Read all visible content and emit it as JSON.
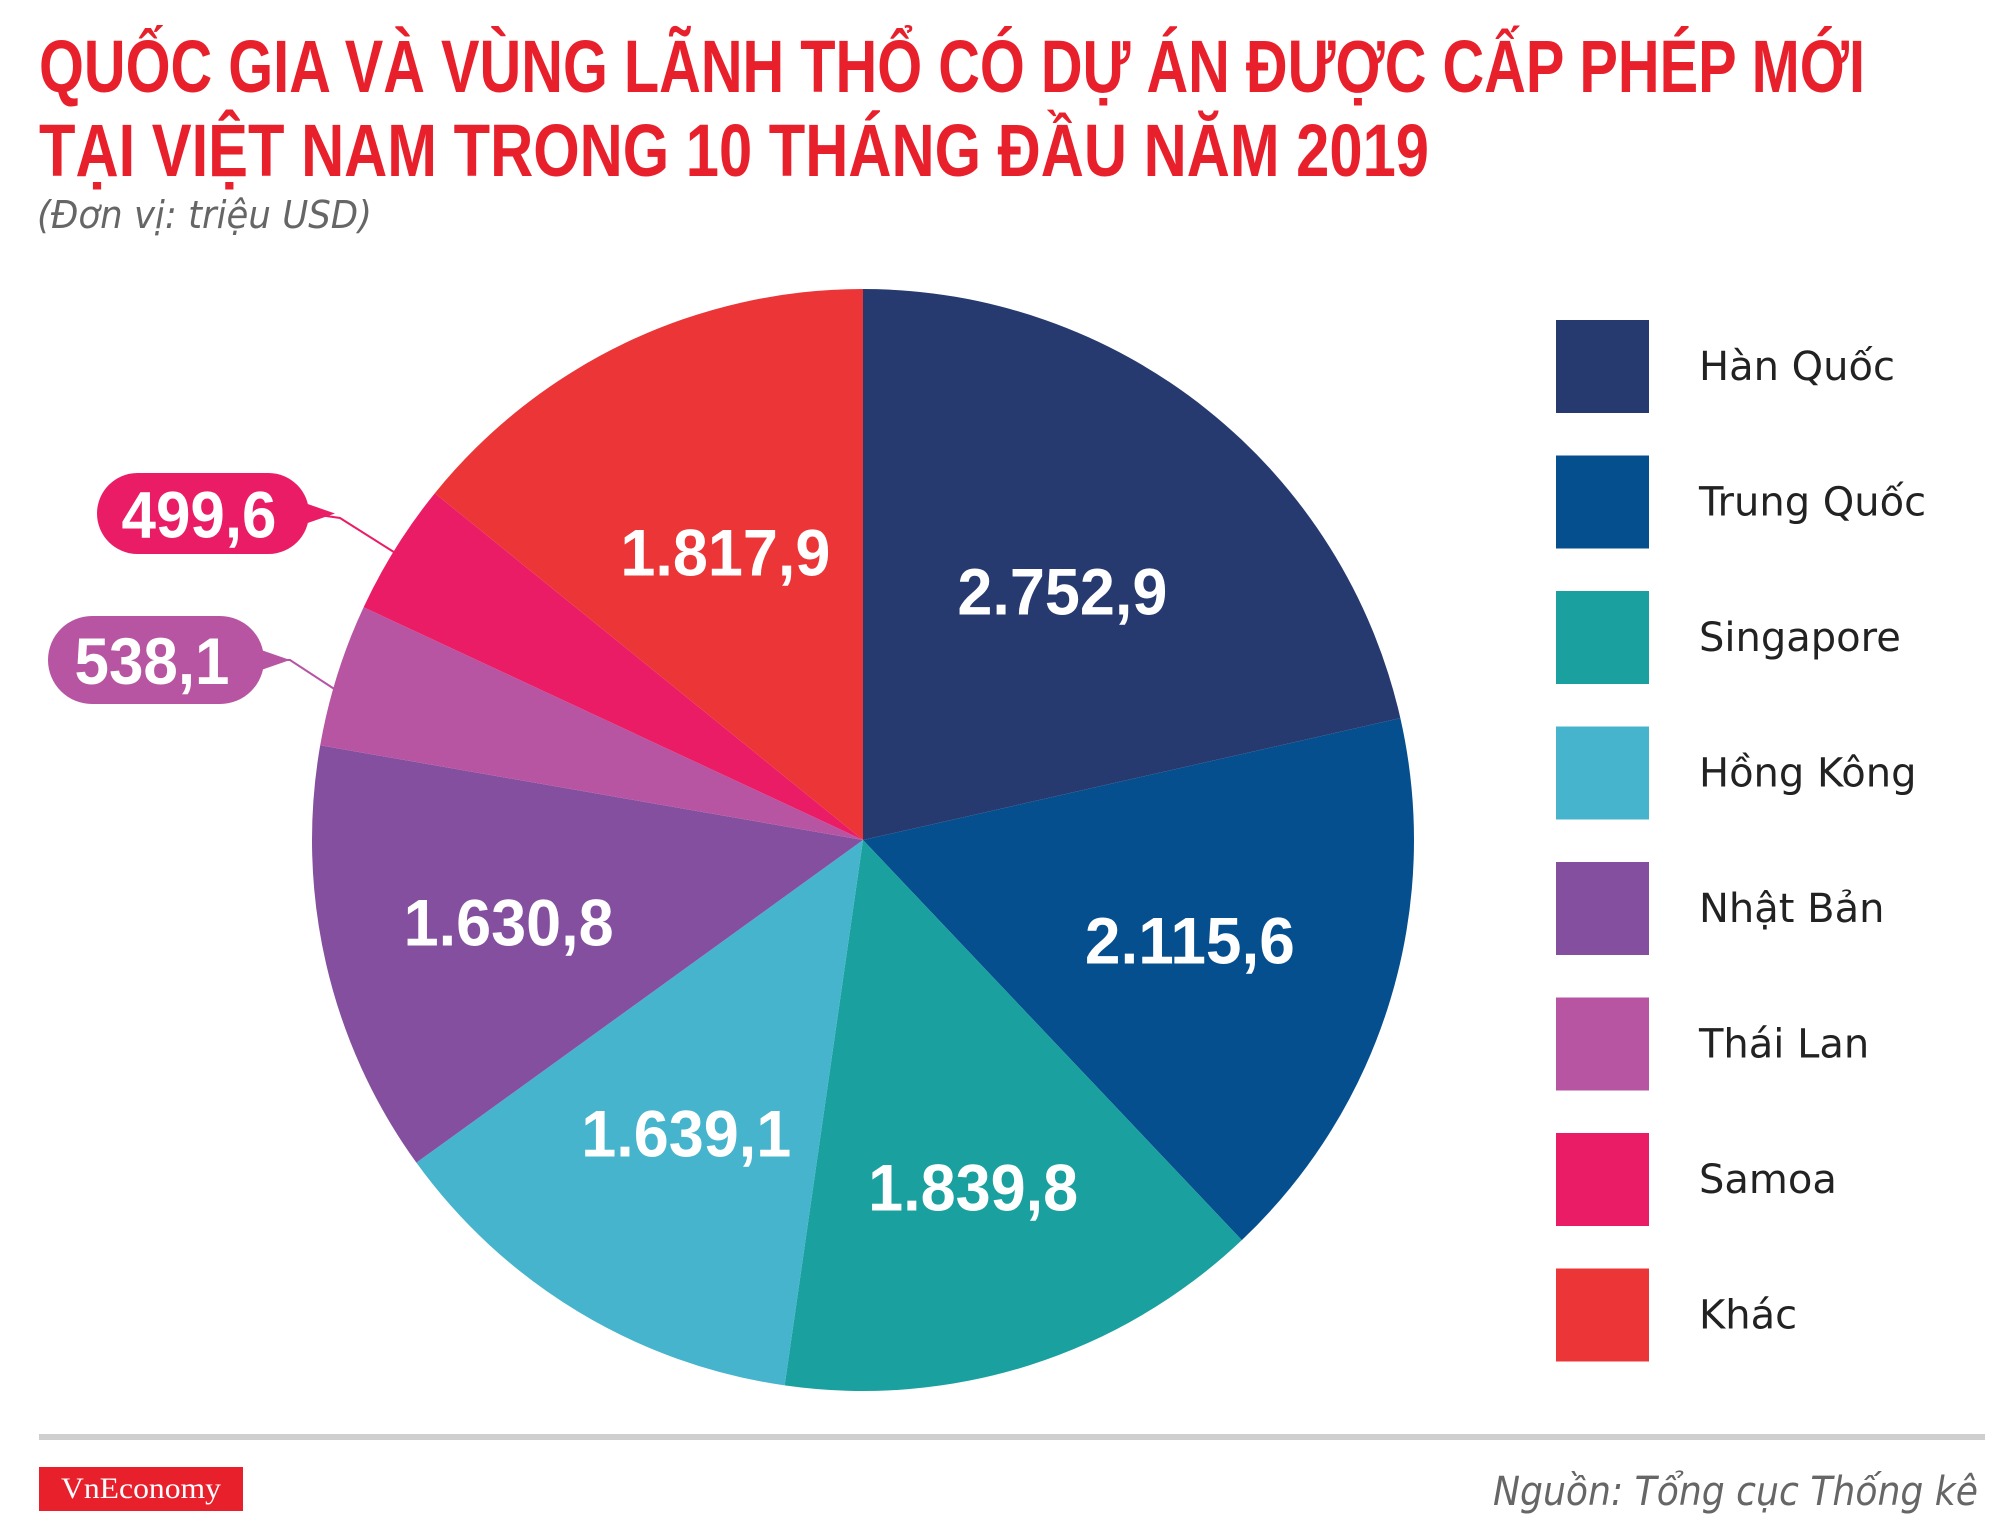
{
  "chart_data": {
    "type": "pie",
    "title": "QUỐC GIA VÀ VÙNG LÃNH THỔ CÓ DỰ ÁN ĐƯỢC CẤP PHÉP MỚI TẠI VIỆT NAM TRONG 10 THÁNG ĐẦU NĂM 2019",
    "title_lines": [
      "QUỐC GIA VÀ VÙNG LÃNH THỔ CÓ DỰ ÁN ĐƯỢC CẤP PHÉP MỚI",
      "TẠI VIỆT NAM TRONG 10 THÁNG ĐẦU NĂM 2019"
    ],
    "subtitle": "(Đơn vị: triệu USD)",
    "legend_position": "right",
    "start": "12 o'clock, clockwise",
    "slices": [
      {
        "name": "Hàn Quốc",
        "value": 2752.9,
        "label": "2.752,9",
        "color": "#273a70"
      },
      {
        "name": "Trung Quốc",
        "value": 2115.6,
        "label": "2.115,6",
        "color": "#064f8f"
      },
      {
        "name": "Singapore",
        "value": 1839.8,
        "label": "1.839,8",
        "color": "#1aa19f"
      },
      {
        "name": "Hồng Kông",
        "value": 1639.1,
        "label": "1.639,1",
        "color": "#45b4cc"
      },
      {
        "name": "Nhật Bản",
        "value": 1630.8,
        "label": "1.630,8",
        "color": "#854f9f"
      },
      {
        "name": "Thái Lan",
        "value": 538.1,
        "label": "538,1",
        "color": "#b855a3"
      },
      {
        "name": "Samoa",
        "value": 499.6,
        "label": "499,6",
        "color": "#eb1c66"
      },
      {
        "name": "Khác",
        "value": 1817.9,
        "label": "1.817,9",
        "color": "#ec3537"
      }
    ]
  },
  "footer": {
    "brand": "VnEconomy",
    "source": "Nguồn: Tổng cục Thống kê"
  }
}
